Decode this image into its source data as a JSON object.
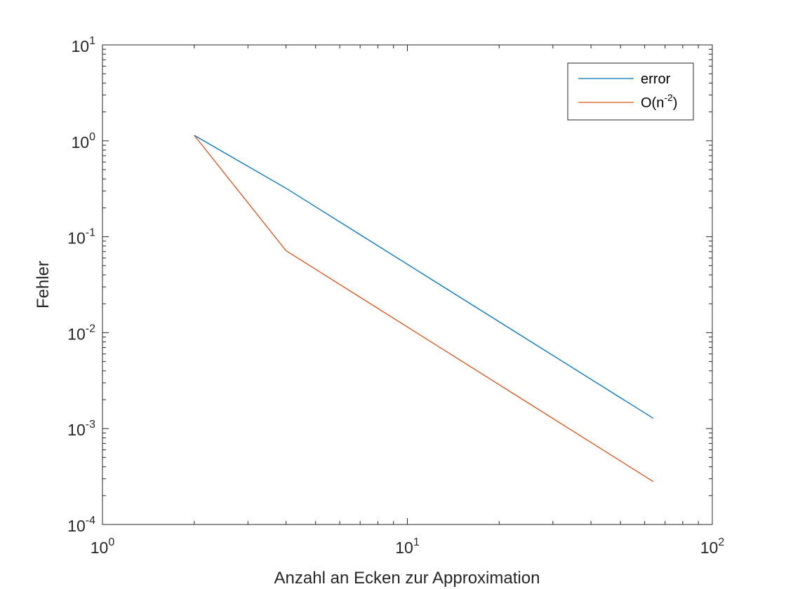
{
  "chart_data": {
    "type": "line",
    "title": "",
    "xlabel": "Anzahl an Ecken zur Approximation",
    "ylabel": "Fehler",
    "xscale": "log",
    "yscale": "log",
    "xlim": [
      1,
      100
    ],
    "ylim": [
      0.0001,
      10
    ],
    "grid": false,
    "legend": "top-right",
    "x_ticks": [
      {
        "value": 1,
        "base": "10",
        "exp": "0"
      },
      {
        "value": 10,
        "base": "10",
        "exp": "1"
      },
      {
        "value": 100,
        "base": "10",
        "exp": "2"
      }
    ],
    "y_ticks": [
      {
        "value": 0.0001,
        "base": "10",
        "exp": "-4"
      },
      {
        "value": 0.001,
        "base": "10",
        "exp": "-3"
      },
      {
        "value": 0.01,
        "base": "10",
        "exp": "-2"
      },
      {
        "value": 0.1,
        "base": "10",
        "exp": "-1"
      },
      {
        "value": 1,
        "base": "10",
        "exp": "0"
      },
      {
        "value": 10,
        "base": "10",
        "exp": "1"
      }
    ],
    "series": [
      {
        "name": "error",
        "name_suffix": "",
        "color": "#0072BD",
        "points": [
          [
            2,
            1.14
          ],
          [
            4,
            0.32
          ],
          [
            64,
            0.00128
          ]
        ]
      },
      {
        "name": "O(n",
        "name_exp": "-2",
        "name_suffix": ")",
        "color": "#D95319",
        "points": [
          [
            2,
            1.14
          ],
          [
            4,
            0.0715
          ],
          [
            64,
            0.00028
          ]
        ]
      }
    ]
  }
}
